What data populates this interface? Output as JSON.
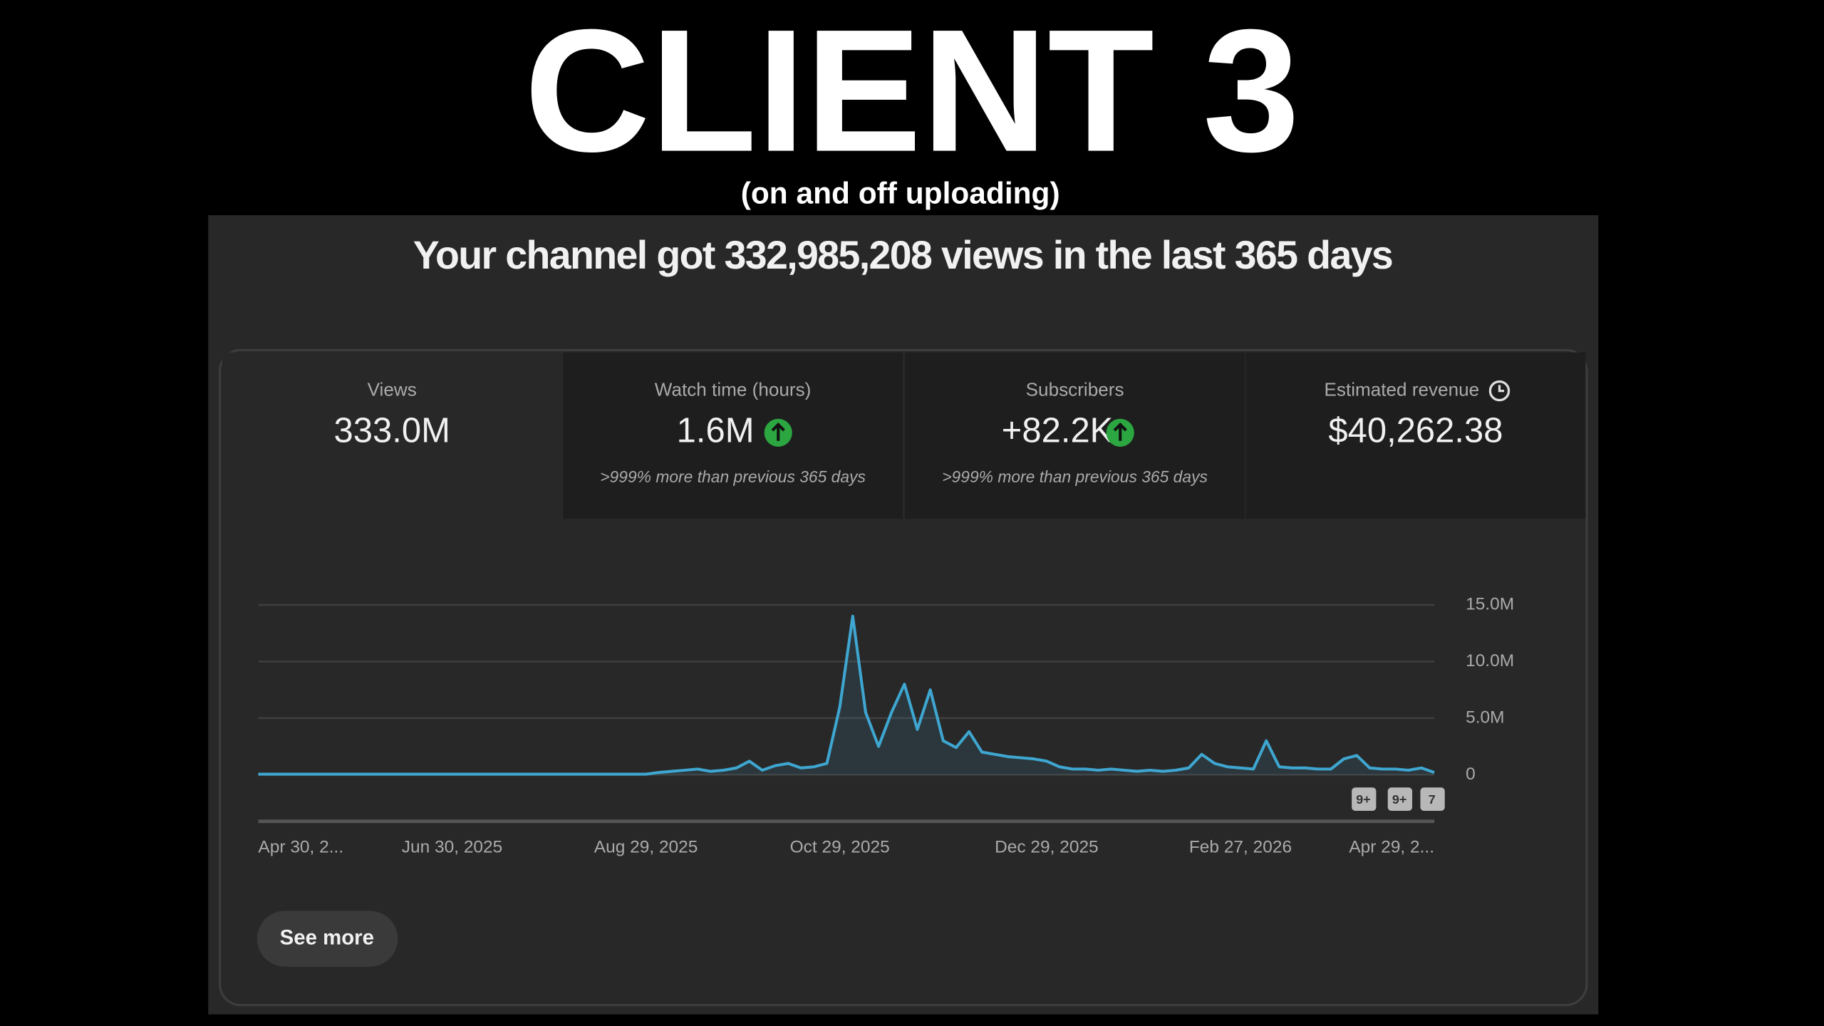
{
  "header": {
    "title": "CLIENT 3",
    "subtitle": "(on and off uploading)"
  },
  "panel": {
    "headline": "Your channel got 332,985,208 views in the last 365 days",
    "metrics": [
      {
        "label": "Views",
        "value": "333.0M"
      },
      {
        "label": "Watch time (hours)",
        "value": "1.6M",
        "note": ">999% more than previous 365 days"
      },
      {
        "label": "Subscribers",
        "value": "+82.2K",
        "note": ">999% more than previous 365 days"
      },
      {
        "label": "Estimated revenue",
        "value": "$40,262.38"
      }
    ],
    "badges": [
      "9+",
      "9+",
      "7"
    ],
    "button": "See more"
  },
  "chart_data": {
    "type": "line",
    "color": "#3ea6d0",
    "grid": true,
    "categories": [
      "Apr 30, 2...",
      null,
      null,
      null,
      null,
      null,
      null,
      null,
      null,
      null,
      null,
      null,
      null,
      null,
      null,
      "Jun 30, 2025",
      null,
      null,
      null,
      null,
      null,
      null,
      null,
      null,
      null,
      null,
      null,
      null,
      null,
      null,
      "Aug 29, 2025",
      null,
      null,
      null,
      null,
      null,
      null,
      null,
      null,
      null,
      null,
      null,
      null,
      null,
      null,
      "Oct 29, 2025",
      null,
      null,
      null,
      null,
      null,
      null,
      null,
      null,
      null,
      null,
      null,
      null,
      null,
      null,
      null,
      "Dec 29, 2025",
      null,
      null,
      null,
      null,
      null,
      null,
      null,
      null,
      null,
      null,
      null,
      null,
      null,
      null,
      "Feb 27, 2026",
      null,
      null,
      null,
      null,
      null,
      null,
      null,
      null,
      null,
      null,
      null,
      null,
      null,
      null,
      "Apr 29, 2..."
    ],
    "values": [
      50000,
      50000,
      50000,
      50000,
      50000,
      50000,
      50000,
      50000,
      50000,
      50000,
      50000,
      50000,
      50000,
      50000,
      50000,
      50000,
      50000,
      50000,
      50000,
      50000,
      50000,
      50000,
      50000,
      50000,
      50000,
      50000,
      50000,
      50000,
      50000,
      50000,
      50000,
      200000,
      300000,
      400000,
      500000,
      300000,
      400000,
      600000,
      1200000,
      400000,
      800000,
      1000000,
      600000,
      700000,
      1000000,
      6000000,
      14000000,
      5500000,
      2500000,
      5500000,
      8000000,
      4000000,
      7500000,
      3000000,
      2400000,
      3800000,
      2000000,
      1800000,
      1600000,
      1500000,
      1400000,
      1200000,
      700000,
      500000,
      500000,
      400000,
      500000,
      400000,
      300000,
      400000,
      300000,
      400000,
      600000,
      1800000,
      1000000,
      700000,
      600000,
      500000,
      3000000,
      700000,
      600000,
      600000,
      500000,
      500000,
      1400000,
      1700000,
      600000,
      500000,
      500000,
      400000,
      600000,
      200000
    ],
    "ylim": [
      0,
      15000000
    ],
    "yticks": [
      0,
      {
        "value": 5000000,
        "label": "5.0M"
      },
      {
        "value": 10000000,
        "label": "10.0M"
      },
      {
        "value": 15000000,
        "label": "15.0M"
      }
    ]
  }
}
